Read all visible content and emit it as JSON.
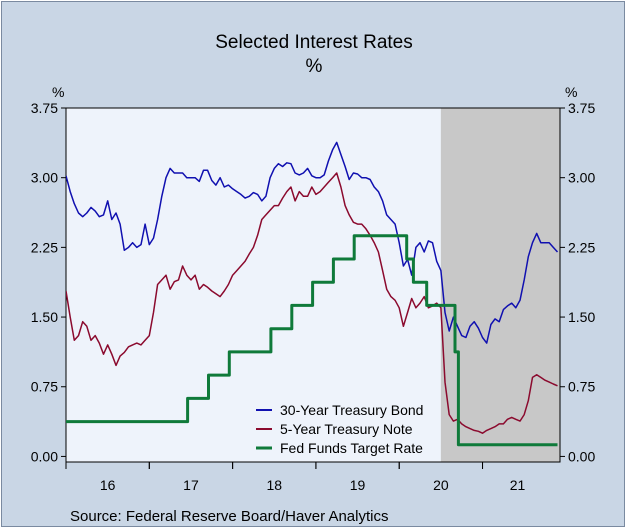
{
  "title": "Selected Interest Rates",
  "subtitle": "%",
  "source": "Source:  Federal Reserve Board/Haver Analytics",
  "chart_data": {
    "type": "line",
    "title": "Selected Interest Rates",
    "subtitle": "%",
    "ylabel_left": "%",
    "ylabel_right": "%",
    "xlim": [
      2015.5,
      2021.43
    ],
    "ylim": [
      -0.06,
      3.75
    ],
    "yticks": [
      "0.00",
      "0.75",
      "1.50",
      "2.25",
      "3.00",
      "3.75"
    ],
    "ytick_values": [
      0,
      0.75,
      1.5,
      2.25,
      3.0,
      3.75
    ],
    "xtick_labels": [
      "16",
      "17",
      "18",
      "19",
      "20",
      "21"
    ],
    "xtick_label_positions": [
      2016,
      2017,
      2018,
      2019,
      2020,
      2020.92
    ],
    "recession_band": [
      2020.0,
      2021.43
    ],
    "legend_position": "bottom-center",
    "colors": {
      "plot_bg": "#eef3fb",
      "recession": "#c8c8c8",
      "bond": "#1010b0",
      "note": "#8b0a2e",
      "fed": "#0f7a3a"
    },
    "series": [
      {
        "name": "30-Year Treasury Bond",
        "color": "#1010b0",
        "x": [
          2015.5,
          2015.55,
          2015.6,
          2015.65,
          2015.7,
          2015.75,
          2015.8,
          2015.85,
          2015.9,
          2015.95,
          2016.0,
          2016.05,
          2016.1,
          2016.15,
          2016.2,
          2016.25,
          2016.3,
          2016.35,
          2016.4,
          2016.45,
          2016.5,
          2016.55,
          2016.6,
          2016.65,
          2016.7,
          2016.75,
          2016.8,
          2016.85,
          2016.9,
          2016.95,
          2017.0,
          2017.05,
          2017.1,
          2017.15,
          2017.2,
          2017.25,
          2017.3,
          2017.35,
          2017.4,
          2017.45,
          2017.5,
          2017.55,
          2017.6,
          2017.65,
          2017.7,
          2017.75,
          2017.8,
          2017.85,
          2017.9,
          2017.95,
          2018.0,
          2018.05,
          2018.1,
          2018.15,
          2018.2,
          2018.25,
          2018.3,
          2018.35,
          2018.4,
          2018.45,
          2018.5,
          2018.55,
          2018.6,
          2018.65,
          2018.7,
          2018.75,
          2018.8,
          2018.85,
          2018.9,
          2018.95,
          2019.0,
          2019.05,
          2019.1,
          2019.15,
          2019.2,
          2019.25,
          2019.3,
          2019.35,
          2019.4,
          2019.45,
          2019.5,
          2019.55,
          2019.6,
          2019.65,
          2019.7,
          2019.75,
          2019.8,
          2019.85,
          2019.9,
          2019.95,
          2020.0,
          2020.05,
          2020.1,
          2020.15,
          2020.2,
          2020.25,
          2020.3,
          2020.35,
          2020.4,
          2020.45,
          2020.5,
          2020.55,
          2020.6,
          2020.65,
          2020.7,
          2020.75,
          2020.8,
          2020.85,
          2020.9,
          2020.95,
          2021.0,
          2021.05,
          2021.1,
          2021.15,
          2021.2,
          2021.25,
          2021.3,
          2021.35,
          2021.4
        ],
        "values": [
          3.02,
          2.85,
          2.72,
          2.62,
          2.58,
          2.62,
          2.68,
          2.64,
          2.58,
          2.6,
          2.75,
          2.55,
          2.62,
          2.5,
          2.22,
          2.25,
          2.3,
          2.25,
          2.28,
          2.5,
          2.28,
          2.35,
          2.55,
          2.8,
          3.0,
          3.1,
          3.05,
          3.05,
          3.05,
          3.0,
          3.0,
          3.0,
          2.96,
          3.08,
          3.08,
          2.97,
          2.92,
          3.0,
          2.9,
          2.92,
          2.88,
          2.85,
          2.82,
          2.78,
          2.8,
          2.84,
          2.82,
          2.75,
          2.8,
          3.0,
          3.1,
          3.15,
          3.12,
          3.16,
          3.15,
          3.05,
          3.03,
          3.05,
          3.1,
          3.02,
          3.0,
          3.0,
          3.03,
          3.18,
          3.3,
          3.38,
          3.25,
          3.12,
          2.98,
          3.05,
          3.04,
          3.0,
          3.0,
          2.98,
          2.9,
          2.85,
          2.75,
          2.6,
          2.55,
          2.5,
          2.3,
          2.05,
          2.12,
          1.95,
          2.25,
          2.3,
          2.2,
          2.32,
          2.3,
          2.1,
          2.0,
          1.55,
          1.35,
          1.5,
          1.4,
          1.3,
          1.28,
          1.4,
          1.45,
          1.38,
          1.28,
          1.22,
          1.42,
          1.48,
          1.45,
          1.58,
          1.62,
          1.65,
          1.6,
          1.68,
          1.9,
          2.15,
          2.3,
          2.4,
          2.3,
          2.3,
          2.3,
          2.25,
          2.2
        ]
      },
      {
        "name": "5-Year Treasury Note",
        "color": "#8b0a2e",
        "x": [
          2015.5,
          2015.55,
          2015.6,
          2015.65,
          2015.7,
          2015.75,
          2015.8,
          2015.85,
          2015.9,
          2015.95,
          2016.0,
          2016.05,
          2016.1,
          2016.15,
          2016.2,
          2016.25,
          2016.3,
          2016.35,
          2016.4,
          2016.45,
          2016.5,
          2016.55,
          2016.6,
          2016.65,
          2016.7,
          2016.75,
          2016.8,
          2016.85,
          2016.9,
          2016.95,
          2017.0,
          2017.05,
          2017.1,
          2017.15,
          2017.2,
          2017.25,
          2017.3,
          2017.35,
          2017.4,
          2017.45,
          2017.5,
          2017.55,
          2017.6,
          2017.65,
          2017.7,
          2017.75,
          2017.8,
          2017.85,
          2017.9,
          2017.95,
          2018.0,
          2018.05,
          2018.1,
          2018.15,
          2018.2,
          2018.25,
          2018.3,
          2018.35,
          2018.4,
          2018.45,
          2018.5,
          2018.55,
          2018.6,
          2018.65,
          2018.7,
          2018.75,
          2018.8,
          2018.85,
          2018.9,
          2018.95,
          2019.0,
          2019.05,
          2019.1,
          2019.15,
          2019.2,
          2019.25,
          2019.3,
          2019.35,
          2019.4,
          2019.45,
          2019.5,
          2019.55,
          2019.6,
          2019.65,
          2019.7,
          2019.75,
          2019.8,
          2019.85,
          2019.9,
          2019.95,
          2020.0,
          2020.05,
          2020.1,
          2020.15,
          2020.2,
          2020.25,
          2020.3,
          2020.35,
          2020.4,
          2020.45,
          2020.5,
          2020.55,
          2020.6,
          2020.65,
          2020.7,
          2020.75,
          2020.8,
          2020.85,
          2020.9,
          2020.95,
          2021.0,
          2021.05,
          2021.1,
          2021.15,
          2021.2,
          2021.25,
          2021.3,
          2021.35,
          2021.4
        ],
        "values": [
          1.78,
          1.5,
          1.25,
          1.3,
          1.45,
          1.4,
          1.25,
          1.3,
          1.22,
          1.1,
          1.2,
          1.1,
          0.98,
          1.08,
          1.12,
          1.18,
          1.2,
          1.22,
          1.2,
          1.25,
          1.3,
          1.55,
          1.85,
          1.9,
          1.95,
          1.8,
          1.88,
          1.9,
          2.05,
          1.95,
          1.9,
          1.95,
          1.8,
          1.85,
          1.82,
          1.78,
          1.75,
          1.72,
          1.78,
          1.85,
          1.95,
          2.0,
          2.05,
          2.1,
          2.18,
          2.25,
          2.38,
          2.55,
          2.6,
          2.65,
          2.7,
          2.7,
          2.78,
          2.85,
          2.9,
          2.75,
          2.85,
          2.8,
          2.8,
          2.9,
          2.82,
          2.85,
          2.9,
          2.95,
          3.0,
          3.05,
          2.9,
          2.7,
          2.6,
          2.52,
          2.5,
          2.5,
          2.45,
          2.38,
          2.3,
          2.2,
          2.0,
          1.8,
          1.72,
          1.68,
          1.6,
          1.4,
          1.55,
          1.7,
          1.6,
          1.65,
          1.72,
          1.6,
          1.62,
          1.65,
          1.6,
          0.8,
          0.45,
          0.38,
          0.4,
          0.35,
          0.32,
          0.3,
          0.28,
          0.27,
          0.25,
          0.28,
          0.3,
          0.32,
          0.35,
          0.35,
          0.4,
          0.42,
          0.4,
          0.38,
          0.45,
          0.6,
          0.85,
          0.88,
          0.85,
          0.82,
          0.8,
          0.78,
          0.76
        ]
      },
      {
        "name": "Fed Funds Target Rate",
        "color": "#0f7a3a",
        "step": true,
        "x": [
          2015.5,
          2015.96,
          2016.96,
          2017.21,
          2017.46,
          2017.96,
          2018.21,
          2018.46,
          2018.71,
          2018.96,
          2019.59,
          2019.67,
          2019.83,
          2020.17,
          2020.21,
          2021.4
        ],
        "values": [
          0.375,
          0.375,
          0.625,
          0.875,
          1.125,
          1.375,
          1.625,
          1.875,
          2.125,
          2.375,
          2.125,
          1.875,
          1.625,
          1.125,
          0.125,
          0.125
        ]
      }
    ]
  }
}
